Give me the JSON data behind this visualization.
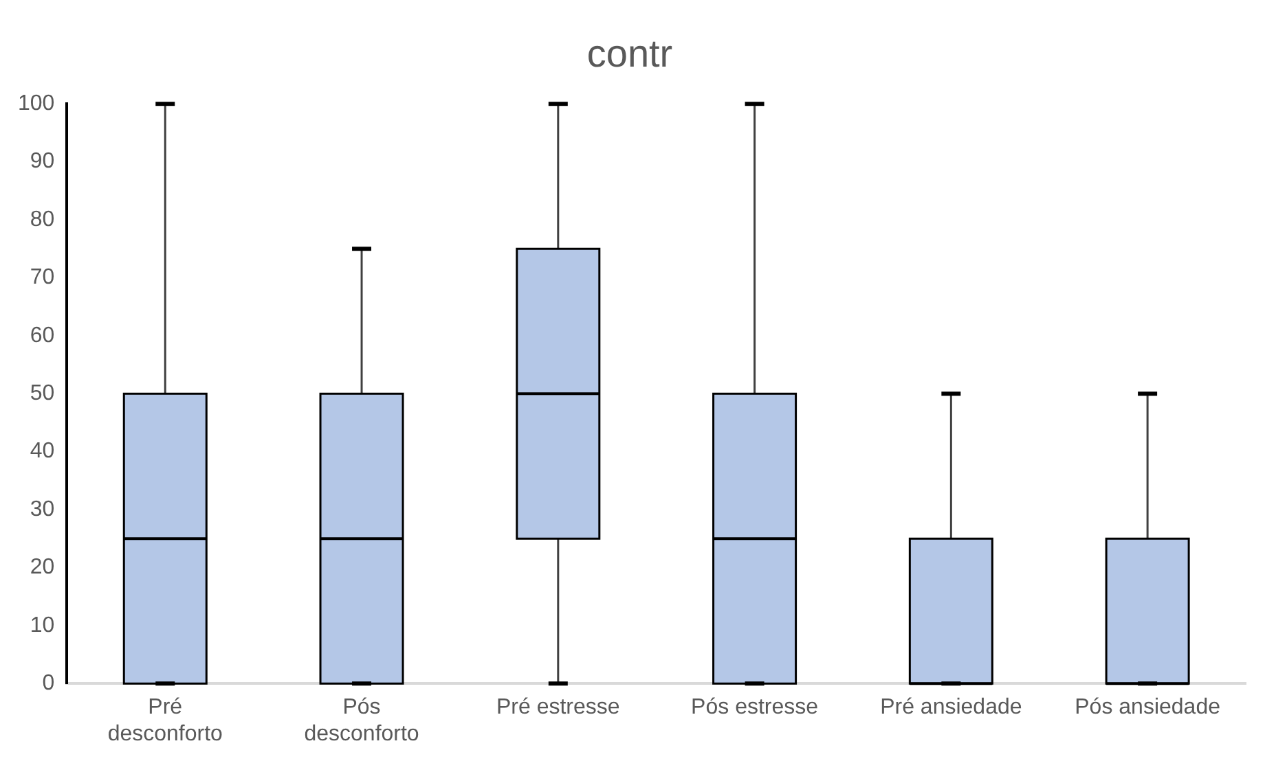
{
  "chart_data": {
    "type": "box",
    "title": "contr",
    "categories": [
      "Pré desconforto",
      "Pós desconforto",
      "Pré estresse",
      "Pós estresse",
      "Pré ansiedade",
      "Pós ansiedade"
    ],
    "boxes": [
      {
        "low": 0,
        "q1": 0,
        "median": 25,
        "q3": 50,
        "high": 100
      },
      {
        "low": 0,
        "q1": 0,
        "median": 25,
        "q3": 50,
        "high": 75
      },
      {
        "low": 0,
        "q1": 25,
        "median": 50,
        "q3": 75,
        "high": 100
      },
      {
        "low": 0,
        "q1": 0,
        "median": 25,
        "q3": 50,
        "high": 100
      },
      {
        "low": 0,
        "q1": 0,
        "median": 0,
        "q3": 25,
        "high": 50
      },
      {
        "low": 0,
        "q1": 0,
        "median": 0,
        "q3": 25,
        "high": 50
      }
    ],
    "color": "#b4c7e7",
    "ylim": [
      0,
      100
    ],
    "yticks": [
      0,
      10,
      20,
      30,
      40,
      50,
      60,
      70,
      80,
      90,
      100
    ],
    "grid": false,
    "legend": false
  }
}
